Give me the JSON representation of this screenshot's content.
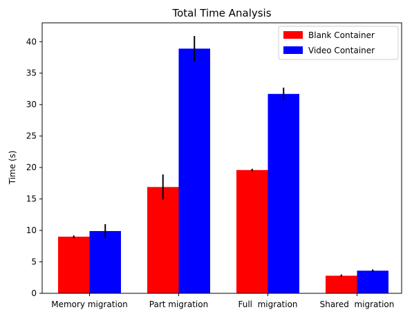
{
  "chart_data": {
    "type": "bar",
    "title": "Total Time Analysis",
    "xlabel": "",
    "ylabel": "Time (s)",
    "ylim": [
      0,
      43
    ],
    "yticks": [
      0,
      5,
      10,
      15,
      20,
      25,
      30,
      35,
      40
    ],
    "categories": [
      "Memory migration",
      "Part migration",
      "Full  migration",
      "Shared  migration"
    ],
    "series": [
      {
        "name": "Blank Container",
        "color": "#ff0000",
        "values": [
          9.0,
          16.9,
          19.6,
          2.8
        ],
        "errors": [
          0.2,
          2.0,
          0.2,
          0.2
        ]
      },
      {
        "name": "Video Container",
        "color": "#0000ff",
        "values": [
          9.9,
          38.9,
          31.7,
          3.6
        ],
        "errors": [
          1.1,
          2.0,
          1.0,
          0.2
        ]
      }
    ],
    "legend_position": "top-right",
    "grid": false
  }
}
